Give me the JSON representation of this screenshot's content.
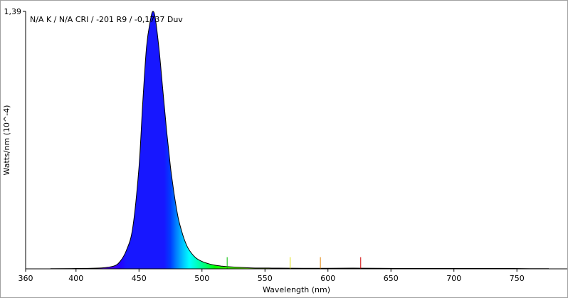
{
  "chart_data": {
    "type": "area",
    "title": "",
    "annotation": "N/A K / N/A CRI / -201 R9 / -0,1737 Duv",
    "xlabel": "Wavelength (nm)",
    "ylabel": "Watts/nm (10^-4)",
    "xlim": [
      360,
      790
    ],
    "ylim": [
      0,
      1.39
    ],
    "y_tick_labels": [
      "1,39"
    ],
    "x_tick_labels": [
      "360",
      "400",
      "450",
      "500",
      "550",
      "600",
      "650",
      "700",
      "750"
    ],
    "x_ticks": [
      360,
      400,
      450,
      500,
      550,
      600,
      650,
      700,
      750
    ],
    "grid": false,
    "fill": "spectral-colors",
    "series": [
      {
        "x": [
          380,
          400,
          420,
          430,
          435,
          440,
          445,
          450,
          453,
          456,
          459,
          461,
          463,
          466,
          469,
          472,
          475,
          478,
          481,
          484,
          487,
          490,
          495,
          500,
          505,
          510,
          515,
          520,
          530,
          540,
          560,
          580,
          600,
          620,
          640,
          660,
          680,
          700,
          720,
          740,
          760,
          775
        ],
        "y": [
          0.001,
          0.002,
          0.005,
          0.015,
          0.04,
          0.1,
          0.22,
          0.55,
          0.9,
          1.2,
          1.34,
          1.39,
          1.35,
          1.18,
          0.96,
          0.74,
          0.55,
          0.4,
          0.28,
          0.2,
          0.14,
          0.1,
          0.06,
          0.04,
          0.028,
          0.02,
          0.015,
          0.012,
          0.008,
          0.005,
          0.004,
          0.003,
          0.003,
          0.004,
          0.003,
          0.002,
          0.002,
          0.002,
          0.002,
          0.002,
          0.001,
          0.001
        ]
      }
    ],
    "spikes": [
      {
        "x": 520,
        "y": 0.04,
        "color": "#00c000"
      },
      {
        "x": 570,
        "y": 0.04,
        "color": "#e0e000"
      },
      {
        "x": 594,
        "y": 0.04,
        "color": "#e08000"
      },
      {
        "x": 626,
        "y": 0.04,
        "color": "#d00000"
      }
    ]
  }
}
